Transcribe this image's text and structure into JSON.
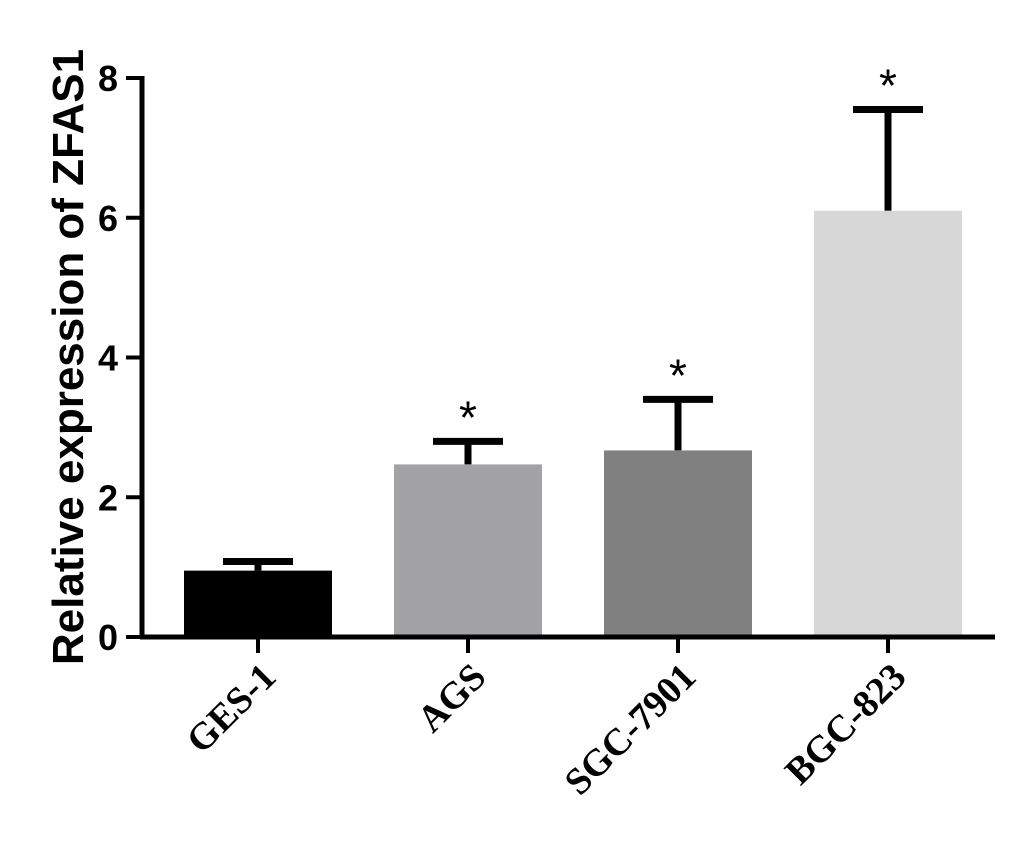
{
  "chart_data": {
    "type": "bar",
    "categories": [
      "GES-1",
      "AGS",
      "SGC-7901",
      "BGC-823"
    ],
    "values": [
      0.95,
      2.47,
      2.67,
      6.1
    ],
    "error_upper": [
      1.08,
      2.8,
      3.4,
      7.55
    ],
    "significance": [
      "",
      "*",
      "*",
      "*"
    ],
    "bar_colors": [
      "#000000",
      "#a3a3a6",
      "#808080",
      "#d7d7d7"
    ],
    "ylabel": "Relative expression of ZFAS1",
    "xlabel": "",
    "ylim": [
      0,
      8
    ],
    "yticks": [
      0,
      2,
      4,
      6,
      8
    ],
    "grid": false,
    "legend": "none"
  }
}
